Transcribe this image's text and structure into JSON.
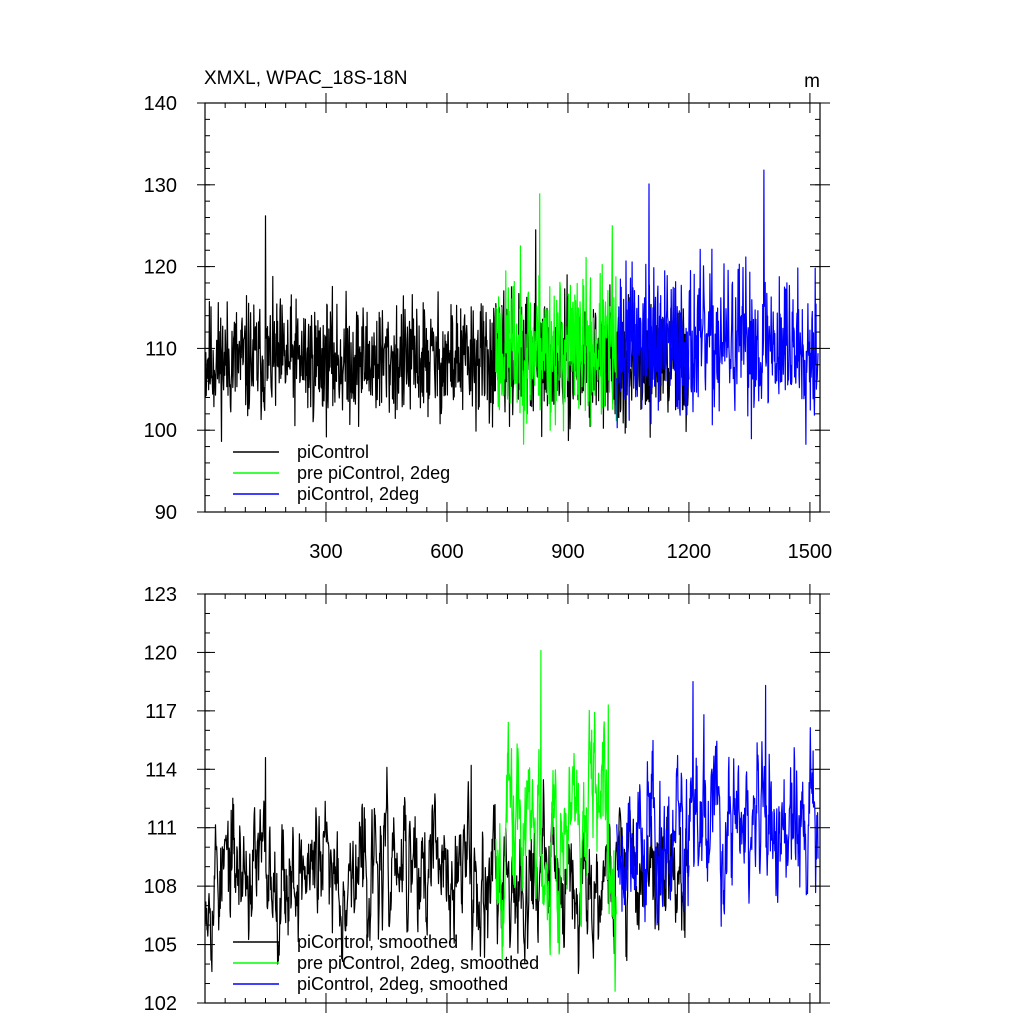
{
  "chart_data": [
    {
      "type": "line",
      "title": "XMXL, WPAC_18S-18N",
      "units": "m",
      "xlim": [
        0,
        1525
      ],
      "ylim": [
        90,
        140
      ],
      "xticks": [
        300,
        600,
        900,
        1200,
        1500
      ],
      "xtick_labels": [
        "300",
        "600",
        "900",
        "1200",
        "1500"
      ],
      "yticks": [
        90,
        100,
        110,
        120,
        130,
        140
      ],
      "ytick_labels": [
        "90",
        "100",
        "110",
        "120",
        "130",
        "140"
      ],
      "legend_position": "bottom-left",
      "series": [
        {
          "name": "piControl",
          "color": "#000000",
          "x_range": [
            1,
            1200
          ],
          "mean": 108.5,
          "spread": 3.6,
          "seed": 11,
          "peaks": [
            [
              150,
              126.2
            ],
            [
              820,
              124.5
            ]
          ]
        },
        {
          "name": "pre piControl, 2deg",
          "color": "#00ff00",
          "x_range": [
            721,
            1020
          ],
          "mean": 110,
          "spread": 4.5,
          "seed": 23,
          "peaks": [
            [
              830,
              128.9
            ],
            [
              1010,
              125
            ]
          ]
        },
        {
          "name": "piControl, 2deg",
          "color": "#0000ff",
          "x_range": [
            1021,
            1520
          ],
          "mean": 110.5,
          "spread": 4.5,
          "seed": 37,
          "peaks": [
            [
              1101,
              130.1
            ],
            [
              1386,
              131.8
            ]
          ]
        }
      ]
    },
    {
      "type": "line",
      "title": "",
      "units": "",
      "xlim": [
        0,
        1525
      ],
      "ylim": [
        102,
        123
      ],
      "xticks": [
        300,
        600,
        900,
        1200,
        1500
      ],
      "xtick_labels": [],
      "yticks": [
        102,
        105,
        108,
        111,
        114,
        117,
        120,
        123
      ],
      "ytick_labels": [
        "102",
        "105",
        "108",
        "111",
        "114",
        "117",
        "120",
        "123"
      ],
      "legend_position": "bottom-left",
      "series": [
        {
          "name": "piControl, smoothed",
          "color": "#000000",
          "x_range": [
            1,
            1200
          ],
          "mean": 108.8,
          "spread": 2.2,
          "seed": 53,
          "peaks": [
            [
              150,
              114.6
            ],
            [
              660,
              114.2
            ]
          ]
        },
        {
          "name": "pre piControl, 2deg, smoothed",
          "color": "#00ff00",
          "x_range": [
            721,
            1020
          ],
          "mean": 111,
          "spread": 2.8,
          "seed": 67,
          "peaks": [
            [
              833,
              120.1
            ],
            [
              1000,
              117.3
            ]
          ]
        },
        {
          "name": "piControl, 2deg, smoothed",
          "color": "#0000ff",
          "x_range": [
            1021,
            1520
          ],
          "mean": 110.8,
          "spread": 2.8,
          "seed": 79,
          "peaks": [
            [
              1210,
              118.5
            ],
            [
              1390,
              118.3
            ]
          ]
        }
      ]
    }
  ]
}
